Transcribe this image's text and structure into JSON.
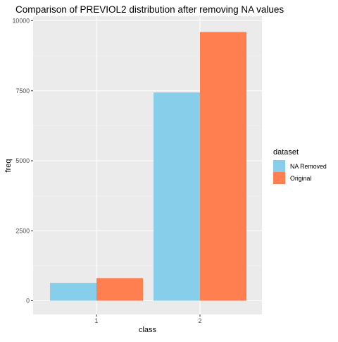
{
  "chart_data": {
    "type": "bar",
    "title": "Comparison of PREVIOL2 distribution after removing NA values",
    "xlabel": "class",
    "ylabel": "freq",
    "categories": [
      "1",
      "2"
    ],
    "ylim": [
      0,
      10000
    ],
    "yticks": [
      0,
      2500,
      5000,
      7500,
      10000
    ],
    "ytick_labels": [
      "0",
      "2500",
      "5000",
      "7500",
      "10000"
    ],
    "grid": true,
    "legend": {
      "title": "dataset",
      "position": "right"
    },
    "series": [
      {
        "name": "NA Removed",
        "color": "#87CEEB",
        "values": [
          640,
          7440
        ]
      },
      {
        "name": "Original",
        "color": "#FF7F50",
        "values": [
          810,
          9600
        ]
      }
    ]
  }
}
